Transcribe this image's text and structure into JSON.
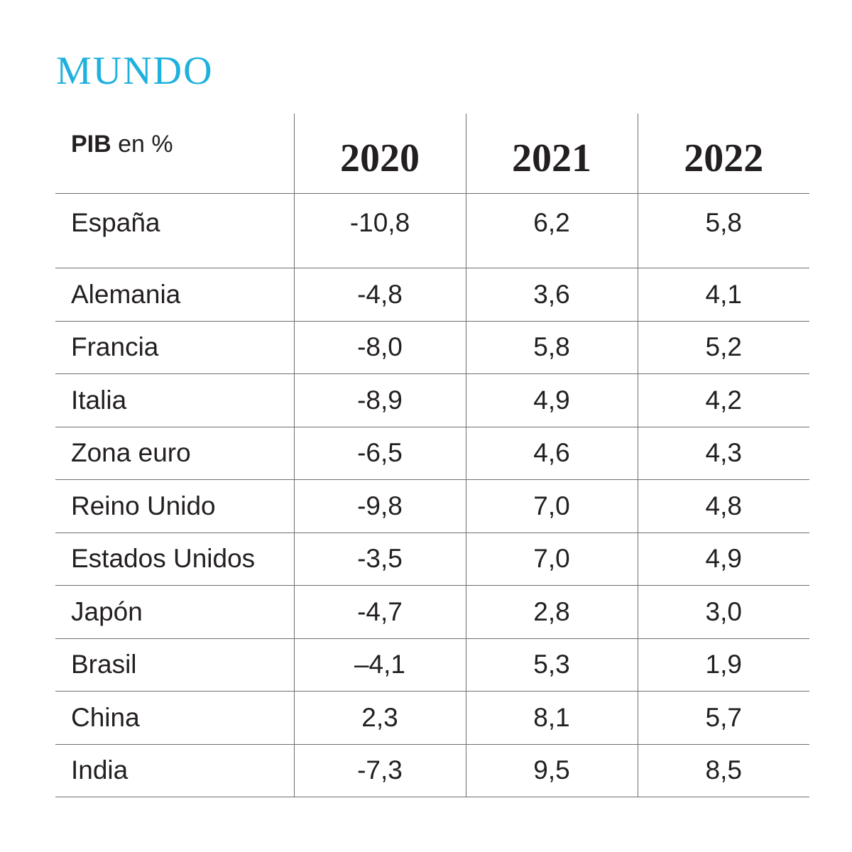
{
  "title": "MUNDO",
  "chart_data": {
    "type": "table",
    "title": "MUNDO",
    "header": {
      "label_bold": "PIB",
      "label_rest": " en %",
      "years": [
        "2020",
        "2021",
        "2022"
      ]
    },
    "rows": [
      {
        "country": "España",
        "values": [
          "-10,8",
          "6,2",
          "5,8"
        ]
      },
      {
        "country": "Alemania",
        "values": [
          "-4,8",
          "3,6",
          "4,1"
        ]
      },
      {
        "country": "Francia",
        "values": [
          "-8,0",
          "5,8",
          "5,2"
        ]
      },
      {
        "country": "Italia",
        "values": [
          "-8,9",
          "4,9",
          "4,2"
        ]
      },
      {
        "country": "Zona euro",
        "values": [
          "-6,5",
          "4,6",
          "4,3"
        ]
      },
      {
        "country": "Reino Unido",
        "values": [
          "-9,8",
          "7,0",
          "4,8"
        ]
      },
      {
        "country": "Estados Unidos",
        "values": [
          "-3,5",
          "7,0",
          "4,9"
        ]
      },
      {
        "country": "Japón",
        "values": [
          "-4,7",
          "2,8",
          "3,0"
        ]
      },
      {
        "country": "Brasil",
        "values": [
          "–4,1",
          "5,3",
          "1,9"
        ]
      },
      {
        "country": "China",
        "values": [
          "2,3",
          "8,1",
          "5,7"
        ]
      },
      {
        "country": "India",
        "values": [
          "-7,3",
          "9,5",
          "8,5"
        ]
      }
    ]
  },
  "colors": {
    "title": "#1fb1dd",
    "text": "#231f20",
    "rule": "#6d6e71"
  }
}
